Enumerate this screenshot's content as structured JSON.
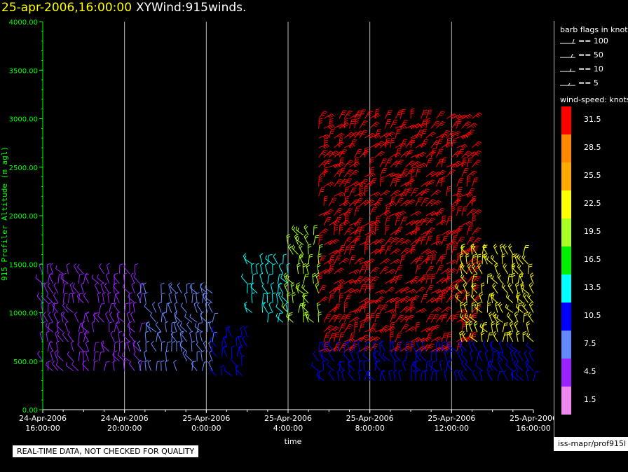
{
  "title": {
    "date": "25-apr-2006,16:00:00",
    "name": "XYWind:915winds."
  },
  "chart_data": {
    "type": "scatter",
    "subtype": "wind-barb time-height",
    "ylabel": "915 Profiler Altitude (m agl)",
    "xlabel": "time",
    "ylim": [
      0,
      4000
    ],
    "y_ticks": [
      "0.00",
      "500.00",
      "1000.00",
      "1500.00",
      "2000.00",
      "2500.00",
      "3000.00",
      "3500.00",
      "4000.00"
    ],
    "x_ticks": [
      {
        "line1": "24-Apr-2006",
        "line2": "16:00:00"
      },
      {
        "line1": "24-Apr-2006",
        "line2": "20:00:00"
      },
      {
        "line1": "25-Apr-2006",
        "line2": "0:00:00"
      },
      {
        "line1": "25-Apr-2006",
        "line2": "4:00:00"
      },
      {
        "line1": "25-Apr-2006",
        "line2": "8:00:00"
      },
      {
        "line1": "25-Apr-2006",
        "line2": "12:00:00"
      },
      {
        "line1": "25-Apr-2006",
        "line2": "16:00:00"
      }
    ],
    "xlim_hours": [
      0,
      24
    ],
    "grid": "vertical",
    "wind_regions": [
      {
        "t_start": 0.0,
        "t_end": 4.8,
        "alt_min": 400,
        "alt_max": 1400,
        "speed": 4.5
      },
      {
        "t_start": 4.8,
        "t_end": 8.5,
        "alt_min": 400,
        "alt_max": 1200,
        "speed": 7.5
      },
      {
        "t_start": 8.5,
        "t_end": 10.0,
        "alt_min": 350,
        "alt_max": 800,
        "speed": 10.5
      },
      {
        "t_start": 10.0,
        "t_end": 12.0,
        "alt_min": 900,
        "alt_max": 1500,
        "speed": 13.5
      },
      {
        "t_start": 12.0,
        "t_end": 13.5,
        "alt_min": 900,
        "alt_max": 1800,
        "speed": 19.5
      },
      {
        "t_start": 13.5,
        "t_end": 21.0,
        "alt_min": 600,
        "alt_max": 3000,
        "speed": 31.5
      },
      {
        "t_start": 13.5,
        "t_end": 24.0,
        "alt_min": 300,
        "alt_max": 600,
        "speed": 10.5
      },
      {
        "t_start": 20.5,
        "t_end": 24.0,
        "alt_min": 700,
        "alt_max": 1600,
        "speed": 22.5
      }
    ]
  },
  "legend": {
    "barb_title": "barb flags in knots",
    "barbs": [
      "== 100",
      "== 50",
      "== 10",
      "== 5"
    ],
    "speed_title": "wind-speed: knots",
    "bins": [
      {
        "label": "31.5",
        "color": "#ff0000"
      },
      {
        "label": "28.5",
        "color": "#ff8800"
      },
      {
        "label": "25.5",
        "color": "#ffaa00"
      },
      {
        "label": "22.5",
        "color": "#ffff00"
      },
      {
        "label": "19.5",
        "color": "#aaff22"
      },
      {
        "label": "16.5",
        "color": "#00ee00"
      },
      {
        "label": "13.5",
        "color": "#00ffff"
      },
      {
        "label": "10.5",
        "color": "#0000ff"
      },
      {
        "label": "7.5",
        "color": "#6688ff"
      },
      {
        "label": "4.5",
        "color": "#9922ff"
      },
      {
        "label": "1.5",
        "color": "#ee88ee"
      }
    ],
    "source": "iss-mapr/prof915l"
  },
  "disclaimer": "REAL-TIME DATA, NOT CHECKED FOR QUALITY"
}
